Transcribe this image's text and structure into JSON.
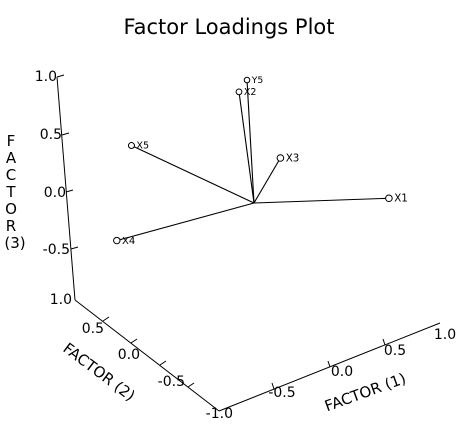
{
  "chart_data": {
    "type": "scatter",
    "projection": "3d",
    "title": "Factor Loadings Plot",
    "axes": {
      "x": {
        "label": "FACTOR (1)",
        "range": [
          -1.0,
          1.0
        ],
        "ticks": [
          "-0.5",
          "0.0",
          "0.5",
          "1.0"
        ]
      },
      "y": {
        "label": "FACTOR (2)",
        "range": [
          -1.0,
          1.0
        ],
        "ticks": [
          "-1.0",
          "-0.5",
          "0.0",
          "0.5",
          "1.0"
        ]
      },
      "z": {
        "label_lines": [
          "F",
          "A",
          "C",
          "T",
          "O",
          "R",
          "(3)"
        ],
        "range": [
          -1.0,
          1.0
        ],
        "ticks": [
          "1.0",
          "0.5",
          "0.0",
          "-0.5"
        ]
      }
    },
    "origin": [
      0.0,
      0.0,
      0.0
    ],
    "points": [
      {
        "label": "X1",
        "x": 0.95,
        "y": 0.0,
        "z": 0.0
      },
      {
        "label": "X2",
        "x": 0.05,
        "y": 0.45,
        "z": 0.55
      },
      {
        "label": "X3",
        "x": 0.2,
        "y": 0.0,
        "z": 0.4
      },
      {
        "label": "X4",
        "x": -0.95,
        "y": 0.1,
        "z": -0.4
      },
      {
        "label": "X5",
        "x": -0.75,
        "y": 0.35,
        "z": 0.2
      },
      {
        "label": "Y5",
        "x": 0.15,
        "y": 0.6,
        "z": 0.5
      }
    ],
    "vectors_from_origin": true,
    "grid": false,
    "legend": "none"
  }
}
